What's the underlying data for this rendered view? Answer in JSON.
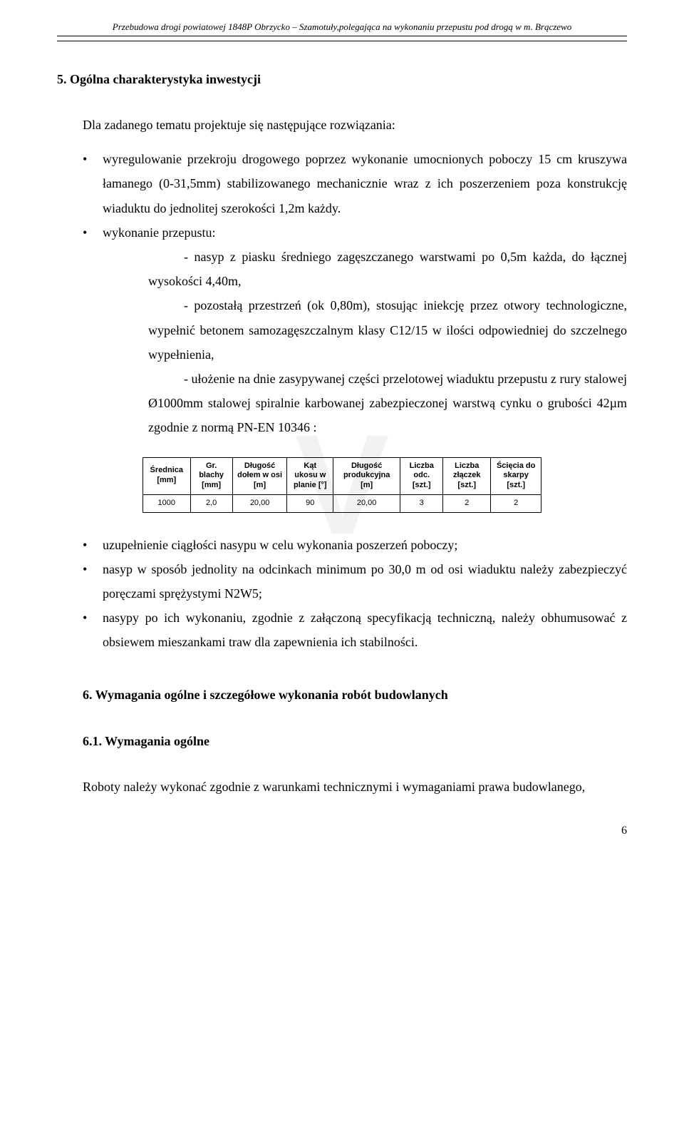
{
  "header": {
    "text": "Przebudowa drogi powiatowej 1848P Obrzycko – Szamotuły,polegająca na wykonaniu przepustu pod drogą w m. Brączewo"
  },
  "section5": {
    "heading": "5.   Ogólna charakterystyka inwestycji",
    "intro": "Dla zadanego tematu projektuje się następujące rozwiązania:",
    "bullet1_a": "wyregulowanie przekroju drogowego poprzez wykonanie umocnionych poboczy 15 cm kruszywa łamanego (0-31,5mm) stabilizowanego mechanicznie wraz z ich poszerzeniem poza konstrukcję wiaduktu do jednolitej szerokości 1,2m każdy.",
    "bullet2_head": "wykonanie przepustu:",
    "bullet2_s1": "- nasyp z piasku średniego zagęszczanego warstwami po 0,5m każda, do łącznej wysokości 4,40m,",
    "bullet2_s2": "- pozostałą przestrzeń (ok 0,80m), stosując iniekcję przez otwory technologiczne, wypełnić betonem samozagęszczalnym klasy C12/15 w ilości odpowiedniej do szczelnego wypełnienia,",
    "bullet2_s3": "- ułożenie na dnie zasypywanej części przelotowej wiaduktu przepustu z rury stalowej Ø1000mm stalowej spiralnie karbowanej zabezpieczonej warstwą cynku o grubości 42µm zgodnie z normą PN-EN 10346 :",
    "bullet3": "uzupełnienie ciągłości nasypu w celu wykonania poszerzeń poboczy;",
    "bullet4": "nasyp w sposób jednolity na odcinkach minimum po 30,0 m od osi wiaduktu należy zabezpieczyć poręczami sprężystymi N2W5;",
    "bullet5": "nasypy po ich wykonaniu, zgodnie z załączoną specyfikacją techniczną, należy obhumusować z obsiewem mieszankami traw dla zapewnienia ich stabilności."
  },
  "table": {
    "type": "table",
    "columns": [
      "Średnica [mm]",
      "Gr. blachy [mm]",
      "Długość dołem w osi [m]",
      "Kąt ukosu w planie [°]",
      "Długość produkcyjna [m]",
      "Liczba odc. [szt.]",
      "Liczba złączek [szt.]",
      "Ścięcia do skarpy [szt.]"
    ],
    "rows": [
      [
        "1000",
        "2,0",
        "20,00",
        "90",
        "20,00",
        "3",
        "2",
        "2"
      ]
    ],
    "border_color": "#000000",
    "header_fontsize": 11,
    "cell_fontsize": 11,
    "background_color": "transparent",
    "col_widths_pct": [
      12,
      10,
      12,
      11,
      18,
      11,
      12,
      14
    ]
  },
  "section6": {
    "heading": "6.   Wymagania ogólne i szczegółowe wykonania robót budowlanych",
    "sub1_heading": "6.1. Wymagania ogólne",
    "sub1_body": "Roboty należy wykonać zgodnie z warunkami technicznymi i wymaganiami prawa budowlanego,"
  },
  "page_number": "6",
  "colors": {
    "text": "#000000",
    "background": "#ffffff",
    "watermark": "#f2f2f2"
  },
  "typography": {
    "body_font": "Times New Roman",
    "table_font": "Arial",
    "body_size_pt": 13,
    "header_italic_size_pt": 10
  }
}
